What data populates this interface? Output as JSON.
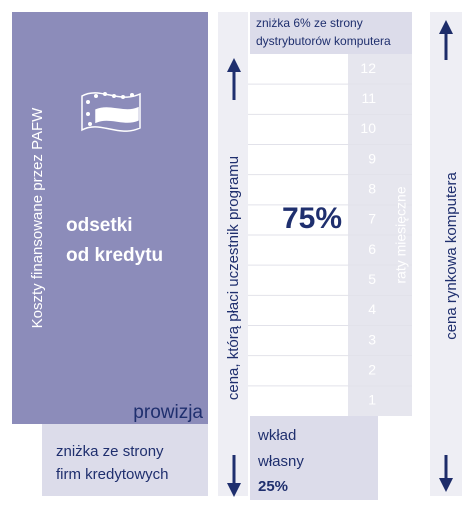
{
  "left_panel": {
    "vertical_label": "Koszty finansowane przez PAFW",
    "heading_lines": [
      "odsetki",
      "od kredytu"
    ],
    "commission": "prowizja",
    "discount_lines": [
      "zniżka ze strony",
      "firm kredytowych"
    ]
  },
  "middle": {
    "top_note_lines": [
      "zniżka 6% ze strony",
      "dystrybutorów komputera"
    ],
    "vertical_label": "cena, którą płaci uczestnik programu",
    "percent": "75%",
    "installments_label": "raty miesięczne",
    "installments": [
      12,
      11,
      10,
      9,
      8,
      7,
      6,
      5,
      4,
      3,
      2,
      1
    ],
    "down_payment_lines": [
      "wkład",
      "własny",
      "25%"
    ]
  },
  "right": {
    "vertical_label": "cena rynkowa komputera"
  }
}
